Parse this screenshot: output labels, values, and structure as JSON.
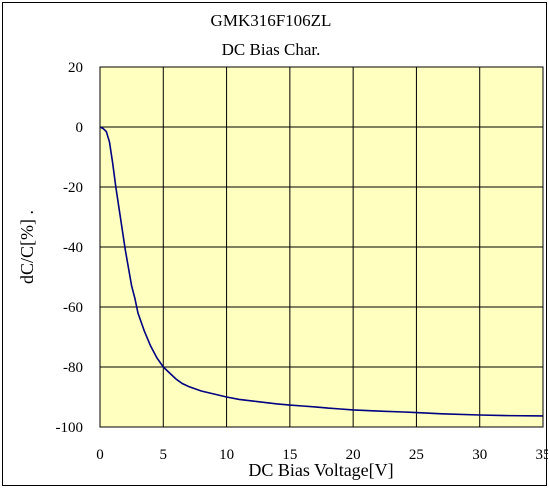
{
  "chart_data": {
    "type": "line",
    "title": "GMK316F106ZL",
    "subtitle": "DC Bias Char.",
    "xlabel": "DC Bias Voltage[V]",
    "ylabel": "dC/C[%] .",
    "xlim": [
      0,
      35
    ],
    "ylim": [
      -100,
      20
    ],
    "x_ticks": [
      "0",
      "5",
      "10",
      "15",
      "20",
      "25",
      "30",
      "35"
    ],
    "y_ticks": [
      "20",
      "0",
      "-20",
      "-40",
      "-60",
      "-80",
      "-100"
    ],
    "grid": true,
    "legend": "none",
    "colors": {
      "plot_background": "#FFFFC0",
      "line": "#000080",
      "grid": "#000000"
    },
    "series": [
      {
        "x": [
          0,
          0.25,
          0.5,
          0.75,
          1.0,
          1.25,
          1.5,
          1.75,
          2.0,
          2.25,
          2.5,
          2.75,
          3.0,
          3.5,
          4.0,
          4.5,
          5.0,
          5.5,
          6.0,
          6.5,
          7.0,
          8.0,
          9.0,
          10.0,
          11.0,
          12.0,
          13.0,
          14.0,
          15.0,
          16.0,
          17.0,
          18.0,
          19.0,
          20.0,
          22.0,
          24.0,
          25.0,
          27.0,
          30.0,
          32.0,
          35.0
        ],
        "values": [
          0,
          -0.5,
          -1.5,
          -5,
          -12,
          -20,
          -27,
          -34,
          -41,
          -47,
          -53,
          -57,
          -62,
          -68,
          -73,
          -77,
          -80,
          -82,
          -84,
          -85.5,
          -86.5,
          -88,
          -89,
          -90,
          -90.8,
          -91.3,
          -91.8,
          -92.3,
          -92.7,
          -93,
          -93.3,
          -93.7,
          -94,
          -94.3,
          -94.7,
          -95,
          -95.2,
          -95.6,
          -96,
          -96.2,
          -96.3
        ]
      }
    ]
  }
}
